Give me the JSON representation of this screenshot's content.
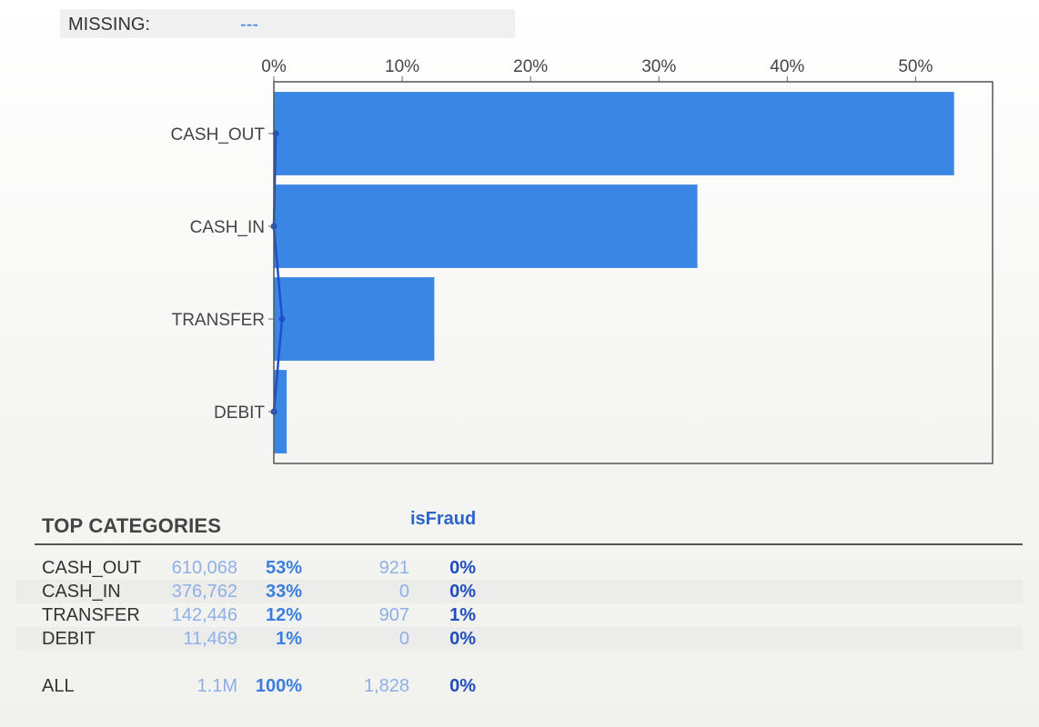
{
  "missing": {
    "label": "MISSING:",
    "value": "---"
  },
  "chart_data": {
    "type": "bar",
    "orientation": "horizontal",
    "categories": [
      "CASH_OUT",
      "CASH_IN",
      "TRANSFER",
      "DEBIT"
    ],
    "values": [
      53,
      33,
      12.5,
      1
    ],
    "overlay_line": {
      "values": [
        0.15,
        0,
        0.64,
        0
      ]
    },
    "xlim": [
      0,
      56
    ],
    "xticks": [
      0,
      10,
      20,
      30,
      40,
      50
    ],
    "xtick_labels": [
      "0%",
      "10%",
      "20%",
      "30%",
      "40%",
      "50%"
    ],
    "title": "",
    "xlabel": "",
    "ylabel": "",
    "colors": {
      "bar": "#3a86e4",
      "line": "#1f4fc9"
    }
  },
  "table": {
    "title": "TOP CATEGORIES",
    "column_header": "isFraud",
    "rows": [
      {
        "name": "CASH_OUT",
        "count": "610,068",
        "pct": "53%",
        "fraud_count": "921",
        "fraud_pct": "0%"
      },
      {
        "name": "CASH_IN",
        "count": "376,762",
        "pct": "33%",
        "fraud_count": "0",
        "fraud_pct": "0%"
      },
      {
        "name": "TRANSFER",
        "count": "142,446",
        "pct": "12%",
        "fraud_count": "907",
        "fraud_pct": "1%"
      },
      {
        "name": "DEBIT",
        "count": "11,469",
        "pct": "1%",
        "fraud_count": "0",
        "fraud_pct": "0%"
      }
    ],
    "total": {
      "name": "ALL",
      "count": "1.1M",
      "pct": "100%",
      "fraud_count": "1,828",
      "fraud_pct": "0%"
    }
  }
}
